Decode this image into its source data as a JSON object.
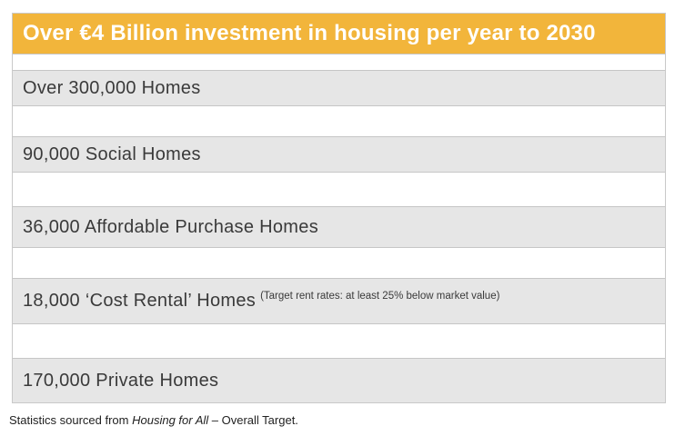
{
  "table": {
    "header": "Over €4 Billion investment in housing per year to 2030",
    "rows": [
      {
        "label": "Over 300,000 Homes"
      },
      {
        "label": "90,000 Social Homes"
      },
      {
        "label": "36,000 Affordable Purchase Homes"
      },
      {
        "label": "18,000 ‘Cost Rental’ Homes",
        "note": "(Target rent rates: at least 25% below market value)"
      },
      {
        "label": "170,000 Private Homes"
      }
    ]
  },
  "footnote": {
    "prefix": "Statistics sourced from ",
    "source_title": "Housing for All",
    "suffix": " – Overall Target."
  },
  "colors": {
    "header_background": "#f2b53b",
    "header_text": "#ffffff",
    "row_background": "#e6e6e6",
    "band_background": "#ffffff",
    "text": "#3a3a3a"
  }
}
